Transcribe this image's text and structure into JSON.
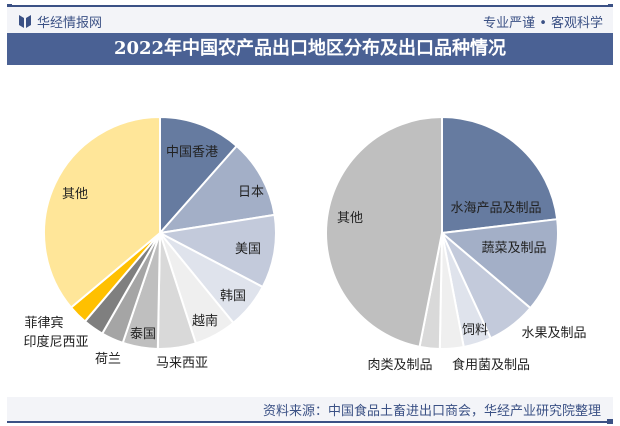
{
  "header": {
    "brand": "华经情报网",
    "slogan": "专业严谨 • 客观科学",
    "title": "2022年中国农产品出口地区分布及出口品种情况"
  },
  "footer": {
    "source": "资料来源：中国食品土畜进出口商会，华经产业研究院整理"
  },
  "chart_data": [
    {
      "type": "pie",
      "title": "",
      "unit": "share (estimated, %)",
      "labels": [
        "中国香港",
        "日本",
        "美国",
        "韩国",
        "越南",
        "马来西亚",
        "泰国",
        "荷兰",
        "印度尼西亚",
        "菲律宾",
        "其他"
      ],
      "values": [
        11.5,
        11.0,
        10.2,
        6.4,
        5.9,
        5.3,
        4.9,
        3.1,
        2.9,
        2.7,
        36.1
      ],
      "colors": [
        "#667ba0",
        "#a3afc7",
        "#c3cadb",
        "#dfe3ec",
        "#efefef",
        "#d9d9d9",
        "#bfbfbf",
        "#a5a5a5",
        "#7f7f7f",
        "#ffc000",
        "#ffe699"
      ],
      "start": "top",
      "direction": "clockwise"
    },
    {
      "type": "pie",
      "title": "",
      "unit": "share (estimated, %)",
      "labels": [
        "水海产品及制品",
        "蔬菜及制品",
        "水果及制品",
        "饲料",
        "食用菌及制品",
        "肉类及制品",
        "其他"
      ],
      "values": [
        23.1,
        13.1,
        6.9,
        3.9,
        3.3,
        2.8,
        46.9
      ],
      "colors": [
        "#667ba0",
        "#a3afc7",
        "#c3cadb",
        "#dfe3ec",
        "#efefef",
        "#d9d9d9",
        "#bfbfbf"
      ],
      "start": "top",
      "direction": "clockwise"
    }
  ]
}
